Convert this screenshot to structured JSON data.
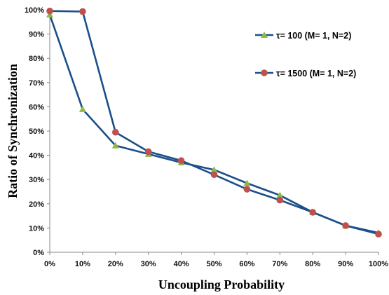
{
  "chart_data": {
    "type": "line",
    "title": "",
    "xlabel": "Uncoupling Probability",
    "ylabel": "Ratio of Synchronization",
    "x": [
      "0%",
      "10%",
      "20%",
      "30%",
      "40%",
      "50%",
      "60%",
      "70%",
      "80%",
      "90%",
      "100%"
    ],
    "x_values": [
      0,
      10,
      20,
      30,
      40,
      50,
      60,
      70,
      80,
      90,
      100
    ],
    "y_ticks": [
      "0%",
      "10%",
      "20%",
      "30%",
      "40%",
      "50%",
      "60%",
      "70%",
      "80%",
      "90%",
      "100%"
    ],
    "ylim": [
      0,
      100
    ],
    "xlim": [
      0,
      100
    ],
    "grid": false,
    "legend_position": "right",
    "line_color": "#1b4f8a",
    "series": [
      {
        "name": "τ= 100 (M= 1, N=2)",
        "marker": "triangle",
        "marker_color": "#8fb848",
        "values": [
          98,
          59,
          44,
          40.5,
          37,
          34,
          28.5,
          23.5,
          16.5,
          11,
          8
        ]
      },
      {
        "name": "τ= 1500 (M= 1, N=2)",
        "marker": "circle",
        "marker_color": "#c0504d",
        "values": [
          99.5,
          99.3,
          49.5,
          41.5,
          37.8,
          32,
          26,
          21.5,
          16.5,
          11,
          7.5
        ]
      }
    ]
  }
}
